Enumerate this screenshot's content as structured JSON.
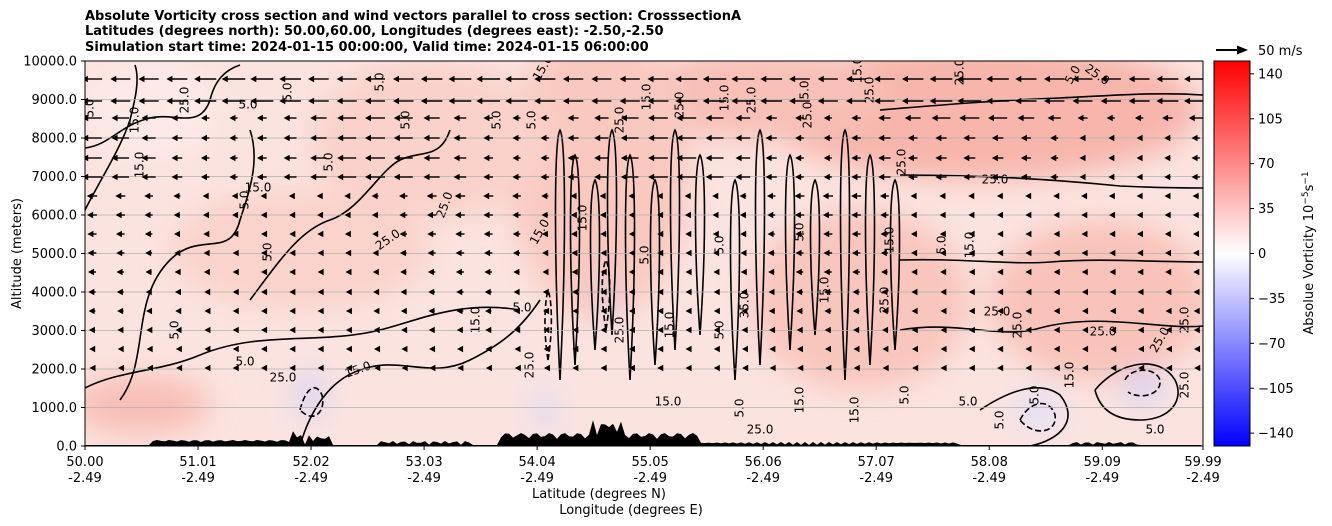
{
  "title_lines": [
    "Absolute Vorticity cross section and wind vectors parallel to cross section: CrosssectionA",
    "Latitudes (degrees north): 50.00,60.00, Longitudes (degrees east): -2.50,-2.50",
    "Simulation start time: 2024-01-15 00:00:00, Valid time: 2024-01-15 06:00:00"
  ],
  "chart_data": {
    "type": "heatmap",
    "title": "Absolute Vorticity cross section and wind vectors parallel to cross section: CrosssectionA",
    "ylabel": "Altitude (meters)",
    "xlabel_lines": [
      "Latitude (degrees N)",
      "Longitude (degrees E)"
    ],
    "ylim": [
      0,
      10000
    ],
    "xlim": [
      50.0,
      59.99
    ],
    "y_ticks": [
      "0.0",
      "1000.0",
      "2000.0",
      "3000.0",
      "4000.0",
      "5000.0",
      "6000.0",
      "7000.0",
      "8000.0",
      "9000.0",
      "10000.0"
    ],
    "x_ticks": [
      {
        "lat": "50.00",
        "lon": "-2.49"
      },
      {
        "lat": "51.01",
        "lon": "-2.49"
      },
      {
        "lat": "52.02",
        "lon": "-2.49"
      },
      {
        "lat": "53.03",
        "lon": "-2.49"
      },
      {
        "lat": "54.04",
        "lon": "-2.49"
      },
      {
        "lat": "55.05",
        "lon": "-2.49"
      },
      {
        "lat": "56.06",
        "lon": "-2.49"
      },
      {
        "lat": "57.07",
        "lon": "-2.49"
      },
      {
        "lat": "58.08",
        "lon": "-2.49"
      },
      {
        "lat": "59.09",
        "lon": "-2.49"
      },
      {
        "lat": "59.99",
        "lon": "-2.49"
      }
    ],
    "grid": "horizontal",
    "colorbar": {
      "label": "Absolue Vorticity 10",
      "label_exp1": "−5",
      "label_mid": "s",
      "label_exp2": "−1",
      "ticks": [
        "140",
        "105",
        "70",
        "35",
        "0",
        "−35",
        "−70",
        "−105",
        "−140"
      ],
      "range": [
        -150,
        150
      ],
      "colormap": "bwr",
      "colors": {
        "max": "#ff0000",
        "mid": "#ffffff",
        "min": "#0000ff"
      }
    },
    "contour_labels": [
      "5.0",
      "15.0",
      "25.0",
      "35.0",
      "-5.0"
    ],
    "wind_key": {
      "label": "50 m/s",
      "speed": 50
    },
    "terrain_color": "#000000"
  }
}
